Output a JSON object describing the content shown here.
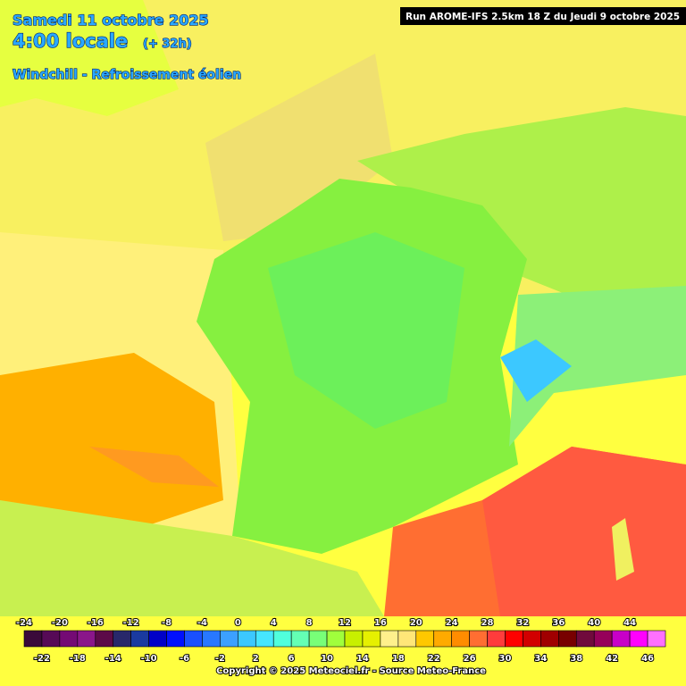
{
  "header": {
    "date": "Samedi 11 octobre 2025",
    "time": "4:00 locale",
    "lead": "(+ 32h)",
    "product": "Windchill - Refroissement éolien"
  },
  "run": "Run AROME-IFS 2.5km 18 Z du Jeudi 9 octobre 2025",
  "legend": {
    "values": [
      -24,
      -22,
      -20,
      -18,
      -16,
      -14,
      -12,
      -10,
      -8,
      -6,
      -4,
      -2,
      0,
      2,
      4,
      6,
      8,
      10,
      12,
      14,
      16,
      18,
      20,
      22,
      24,
      26,
      28,
      30,
      32,
      34,
      36,
      38,
      40,
      42,
      44,
      46
    ],
    "colors": [
      "#3a0a3a",
      "#560a56",
      "#740a74",
      "#8a168a",
      "#5c0a48",
      "#28286a",
      "#1a3aa0",
      "#0000c8",
      "#0010ff",
      "#1a50ff",
      "#2878ff",
      "#3ca0ff",
      "#3cc8ff",
      "#46e6ff",
      "#50ffdc",
      "#64ffb4",
      "#78ff78",
      "#a0ff3c",
      "#c8f000",
      "#e6f000",
      "#fff08c",
      "#ffe678",
      "#ffc800",
      "#ffaa00",
      "#ff8c00",
      "#ff6e32",
      "#ff3c3c",
      "#ff0000",
      "#d20000",
      "#a00000",
      "#780000",
      "#700a3c",
      "#96005a",
      "#c800c8",
      "#ff00ff",
      "#ff70ff"
    ]
  },
  "copyright": "Copyright © 2025 Meteociel.fr - Source Meteo-France"
}
